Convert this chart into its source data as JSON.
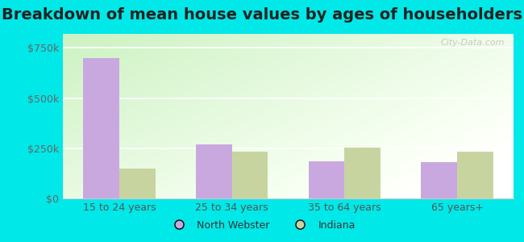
{
  "title": "Breakdown of mean house values by ages of householders",
  "categories": [
    "15 to 24 years",
    "25 to 34 years",
    "35 to 64 years",
    "65 years+"
  ],
  "north_webster": [
    700000,
    270000,
    185000,
    180000
  ],
  "indiana": [
    150000,
    235000,
    255000,
    235000
  ],
  "nw_color": "#c9a8e0",
  "in_color": "#c8d4a0",
  "bar_width": 0.32,
  "ylim": [
    0,
    820000
  ],
  "yticks": [
    0,
    250000,
    500000,
    750000
  ],
  "ytick_labels": [
    "$0",
    "$250k",
    "$500k",
    "$750k"
  ],
  "legend_labels": [
    "North Webster",
    "Indiana"
  ],
  "outer_bg": "#00e8e8",
  "watermark": "City-Data.com",
  "title_fontsize": 14,
  "tick_fontsize": 9,
  "legend_fontsize": 9,
  "bg_gradient_colors": [
    "#d4edd4",
    "#eefaf0",
    "#f5fef8",
    "#ffffff"
  ],
  "grid_color": "#e0ece0"
}
